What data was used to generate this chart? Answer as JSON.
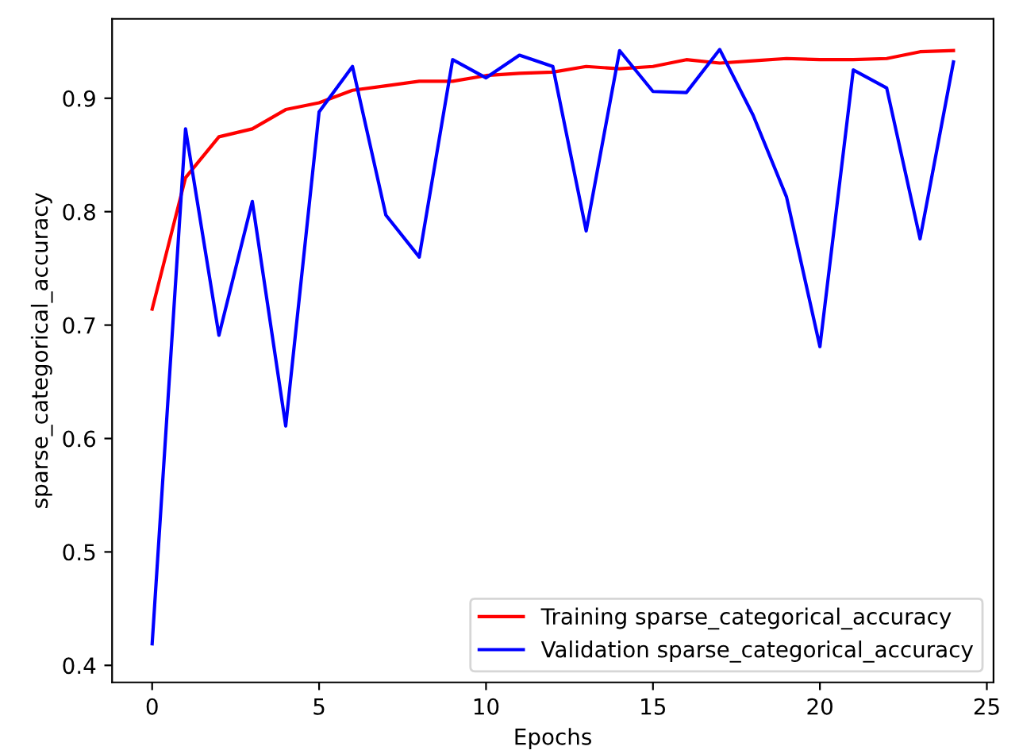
{
  "chart_data": {
    "type": "line",
    "xlabel": "Epochs",
    "ylabel": "sparse_categorical_accuracy",
    "x": [
      0,
      1,
      2,
      3,
      4,
      5,
      6,
      7,
      8,
      9,
      10,
      11,
      12,
      13,
      14,
      15,
      16,
      17,
      18,
      19,
      20,
      21,
      22,
      23,
      24
    ],
    "series": [
      {
        "name": "Training sparse_categorical_accuracy",
        "color": "#ff0000",
        "values": [
          0.714,
          0.83,
          0.866,
          0.873,
          0.89,
          0.896,
          0.907,
          0.911,
          0.915,
          0.915,
          0.92,
          0.922,
          0.923,
          0.928,
          0.926,
          0.928,
          0.934,
          0.931,
          0.933,
          0.935,
          0.934,
          0.934,
          0.935,
          0.941,
          0.942
        ]
      },
      {
        "name": "Validation sparse_categorical_accuracy",
        "color": "#0000ff",
        "values": [
          0.419,
          0.873,
          0.691,
          0.809,
          0.611,
          0.888,
          0.928,
          0.797,
          0.76,
          0.934,
          0.918,
          0.938,
          0.928,
          0.783,
          0.942,
          0.906,
          0.905,
          0.943,
          0.885,
          0.813,
          0.681,
          0.925,
          0.909,
          0.776,
          0.932
        ]
      }
    ],
    "xlim": [
      -1.2,
      25.2
    ],
    "ylim": [
      0.385,
      0.97
    ],
    "xticks": [
      0,
      5,
      10,
      15,
      20,
      25
    ],
    "yticks": [
      0.4,
      0.5,
      0.6,
      0.7,
      0.8,
      0.9
    ],
    "grid": false,
    "legend": "bottom right"
  }
}
